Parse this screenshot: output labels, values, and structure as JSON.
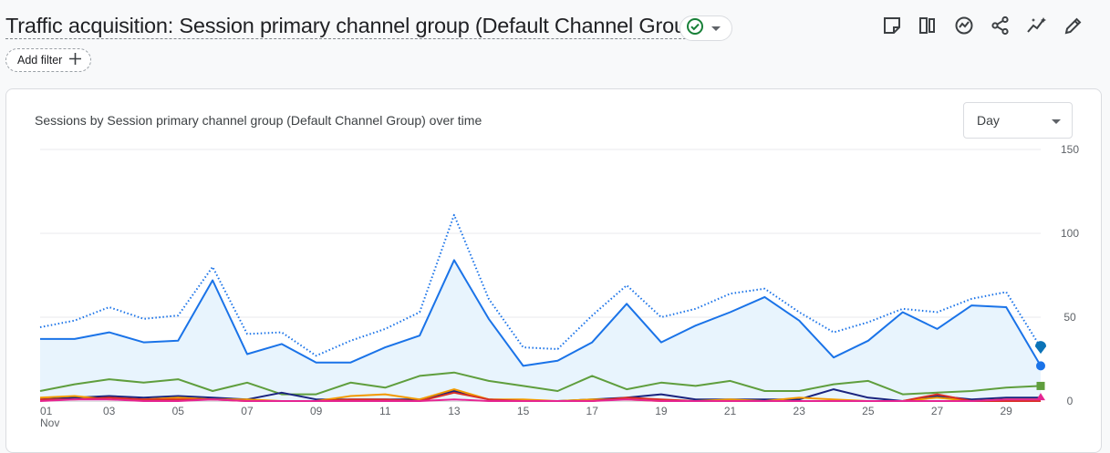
{
  "header": {
    "title": "Traffic acquisition: Session primary channel group (Default Channel Group)",
    "add_filter_label": "Add filter"
  },
  "card": {
    "title": "Sessions by Session primary channel group (Default Channel Group) over time",
    "granularity": "Day"
  },
  "chart_data": {
    "type": "line",
    "title": "Sessions by Session primary channel group (Default Channel Group) over time",
    "x": [
      1,
      2,
      3,
      4,
      5,
      6,
      7,
      8,
      9,
      10,
      11,
      12,
      13,
      14,
      15,
      16,
      17,
      18,
      19,
      20,
      21,
      22,
      23,
      24,
      25,
      26,
      27,
      28,
      29,
      30
    ],
    "x_tick_labels": [
      "01",
      "03",
      "05",
      "07",
      "09",
      "11",
      "13",
      "15",
      "17",
      "19",
      "21",
      "23",
      "25",
      "27",
      "29"
    ],
    "x_month_label": "Nov",
    "y_tick_labels": [
      "150",
      "100",
      "50",
      "0"
    ],
    "ylim": [
      0,
      150
    ],
    "y_axis_position": "right",
    "grid": true,
    "series": [
      {
        "color": "#1a73e8",
        "style": "dotted",
        "values": [
          44,
          48,
          56,
          49,
          51,
          80,
          40,
          41,
          27,
          36,
          43,
          53,
          111,
          61,
          32,
          31,
          51,
          69,
          50,
          55,
          64,
          67,
          53,
          41,
          47,
          55,
          53,
          61,
          65,
          32
        ]
      },
      {
        "color": "#1a73e8",
        "style": "solid",
        "fill": true,
        "values": [
          37,
          37,
          41,
          35,
          36,
          72,
          28,
          34,
          23,
          23,
          32,
          39,
          84,
          49,
          21,
          24,
          35,
          58,
          35,
          45,
          53,
          62,
          48,
          26,
          36,
          53,
          43,
          57,
          56,
          21
        ]
      },
      {
        "color": "#5f9e3d",
        "style": "solid",
        "values": [
          6,
          10,
          13,
          11,
          13,
          6,
          11,
          4,
          4,
          11,
          8,
          15,
          17,
          12,
          9,
          6,
          15,
          7,
          11,
          9,
          12,
          6,
          6,
          10,
          12,
          4,
          5,
          6,
          8,
          9
        ]
      },
      {
        "color": "#1a237e",
        "style": "solid",
        "values": [
          1,
          2,
          3,
          2,
          3,
          2,
          1,
          5,
          1,
          1,
          1,
          1,
          6,
          1,
          0,
          0,
          1,
          2,
          4,
          1,
          1,
          1,
          1,
          7,
          2,
          0,
          3,
          1,
          2,
          2
        ]
      },
      {
        "color": "#f29900",
        "style": "solid",
        "values": [
          2,
          3,
          1,
          1,
          2,
          1,
          1,
          0,
          0,
          3,
          4,
          1,
          7,
          1,
          1,
          0,
          1,
          1,
          0,
          0,
          1,
          0,
          2,
          1,
          0,
          0,
          2,
          0,
          1,
          1
        ]
      },
      {
        "color": "#d93025",
        "style": "solid",
        "values": [
          1,
          1,
          2,
          1,
          1,
          1,
          0,
          0,
          0,
          1,
          1,
          0,
          5,
          1,
          0,
          0,
          0,
          2,
          1,
          0,
          0,
          0,
          0,
          0,
          0,
          0,
          4,
          0,
          0,
          0
        ]
      },
      {
        "color": "#e52592",
        "style": "solid",
        "values": [
          0,
          1,
          1,
          0,
          0,
          1,
          0,
          0,
          0,
          0,
          0,
          0,
          1,
          0,
          0,
          0,
          0,
          1,
          0,
          0,
          0,
          0,
          0,
          0,
          0,
          0,
          0,
          0,
          1,
          1
        ]
      }
    ]
  }
}
